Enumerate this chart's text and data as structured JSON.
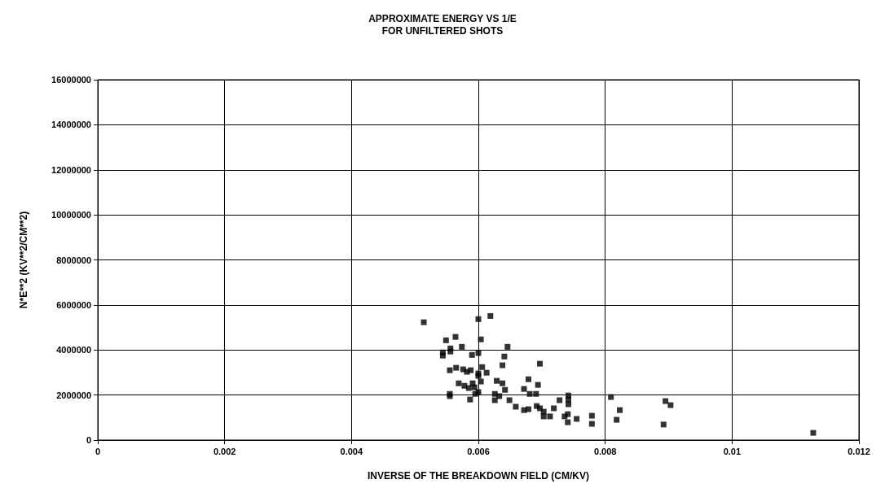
{
  "chart_data": {
    "type": "scatter",
    "title": "APPROXIMATE ENERGY VS 1/E\nFOR UNFILTERED SHOTS",
    "xlabel": "INVERSE OF THE BREAKDOWN FIELD (CM/KV)",
    "ylabel": "N*E**2 (KV**2/CM**2)",
    "marker": "square",
    "grid": true,
    "xlim": [
      0,
      0.012
    ],
    "xticks": [
      0,
      0.002,
      0.004,
      0.006,
      0.008,
      0.01,
      0.012
    ],
    "ylim": [
      0,
      16000000
    ],
    "yticks": [
      0,
      2000000,
      4000000,
      6000000,
      8000000,
      10000000,
      12000000,
      14000000,
      16000000
    ],
    "series": [
      {
        "color": "#000000",
        "x": [
          0.00514,
          0.006,
          0.00619,
          0.00549,
          0.00564,
          0.00604,
          0.00574,
          0.00646,
          0.00544,
          0.00544,
          0.00556,
          0.00556,
          0.0059,
          0.006,
          0.00641,
          0.00638,
          0.00697,
          0.00555,
          0.00565,
          0.00576,
          0.00582,
          0.00588,
          0.006,
          0.00606,
          0.00613,
          0.006,
          0.00629,
          0.00638,
          0.00679,
          0.00569,
          0.00578,
          0.00591,
          0.00604,
          0.00585,
          0.00594,
          0.00642,
          0.00672,
          0.00694,
          0.00681,
          0.00691,
          0.00555,
          0.00555,
          0.00595,
          0.006,
          0.00587,
          0.00626,
          0.00626,
          0.00633,
          0.00649,
          0.00659,
          0.00672,
          0.00679,
          0.00692,
          0.00697,
          0.00703,
          0.00703,
          0.00713,
          0.00719,
          0.00728,
          0.00742,
          0.00742,
          0.00742,
          0.00736,
          0.00741,
          0.00741,
          0.00755,
          0.00779,
          0.00779,
          0.00809,
          0.00823,
          0.00818,
          0.00895,
          0.00903,
          0.00892,
          0.01128
        ],
        "values": [
          5230000,
          5370000,
          5510000,
          4430000,
          4580000,
          4470000,
          4140000,
          4140000,
          3890000,
          3750000,
          4070000,
          3930000,
          3780000,
          3860000,
          3710000,
          3320000,
          3390000,
          3100000,
          3210000,
          3140000,
          3030000,
          3100000,
          2960000,
          3240000,
          2990000,
          2850000,
          2630000,
          2520000,
          2700000,
          2520000,
          2410000,
          2520000,
          2600000,
          2310000,
          2340000,
          2230000,
          2270000,
          2450000,
          2050000,
          2050000,
          2050000,
          1950000,
          2050000,
          2130000,
          1800000,
          2050000,
          1770000,
          1950000,
          1770000,
          1480000,
          1330000,
          1370000,
          1510000,
          1410000,
          1260000,
          1050000,
          1050000,
          1410000,
          1770000,
          1980000,
          1800000,
          1590000,
          1050000,
          1150000,
          790000,
          940000,
          1080000,
          720000,
          1910000,
          1330000,
          900000,
          1730000,
          1550000,
          690000,
          320000
        ]
      }
    ]
  }
}
